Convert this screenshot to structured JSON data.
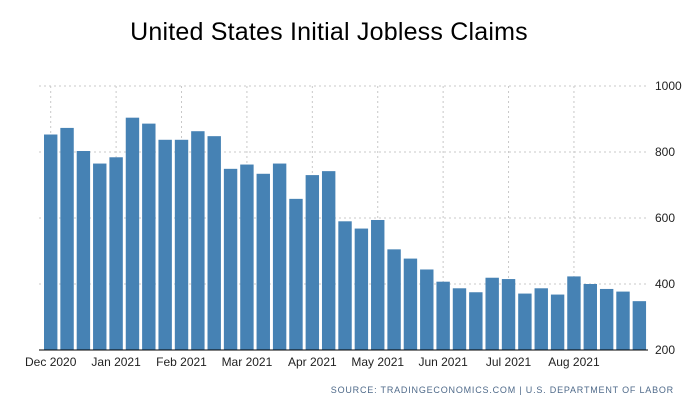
{
  "chart_data": {
    "type": "bar",
    "title": "United States Initial Jobless Claims",
    "xlabel": "",
    "ylabel": "",
    "ylim": [
      200,
      1000
    ],
    "yticks": [
      200,
      400,
      600,
      800,
      1000
    ],
    "xtick_labels": [
      "Dec 2020",
      "Jan 2021",
      "Feb 2021",
      "Mar 2021",
      "Apr 2021",
      "May 2021",
      "Jun 2021",
      "Jul 2021",
      "Aug 2021"
    ],
    "xtick_bar_index": [
      0,
      4,
      8,
      12,
      16,
      20,
      24,
      28,
      32
    ],
    "values": [
      853,
      873,
      803,
      765,
      784,
      904,
      886,
      837,
      837,
      863,
      848,
      749,
      762,
      734,
      765,
      658,
      730,
      742,
      590,
      568,
      594,
      505,
      477,
      444,
      407,
      387,
      375,
      419,
      415,
      371,
      387,
      368,
      423,
      400,
      385,
      377,
      348
    ],
    "bar_color": "#4682b4",
    "grid": true,
    "grid_color": "#c8c8c8"
  },
  "source": "SOURCE: TRADINGECONOMICS.COM | U.S. DEPARTMENT OF LABOR"
}
